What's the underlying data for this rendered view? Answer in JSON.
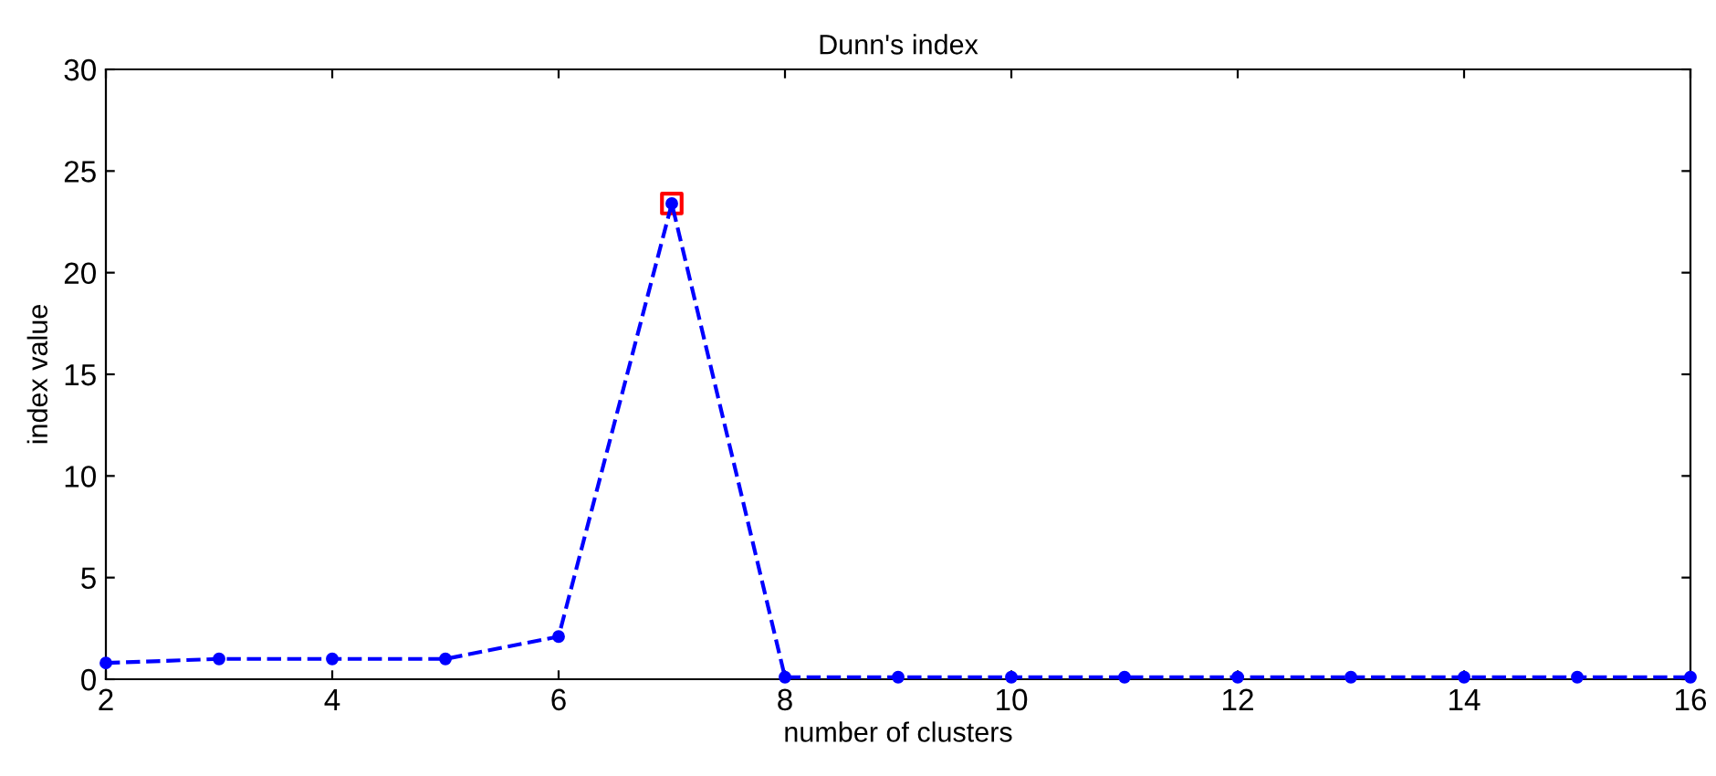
{
  "chart_data": {
    "type": "line",
    "title": "Dunn's index",
    "xlabel": "number of clusters",
    "ylabel": "index value",
    "x": [
      2,
      3,
      4,
      5,
      6,
      7,
      8,
      9,
      10,
      11,
      12,
      13,
      14,
      15,
      16
    ],
    "series": [
      {
        "color": "#0000ff",
        "values": [
          0.8,
          1.0,
          1.0,
          1.0,
          2.1,
          23.4,
          0.1,
          0.1,
          0.1,
          0.1,
          0.1,
          0.1,
          0.1,
          0.1,
          0.1
        ],
        "marker": "circle",
        "line_style": "dashed"
      },
      {
        "type": "scatter",
        "x": [
          7
        ],
        "color": "#ff0000",
        "values": [
          23.4
        ],
        "marker": "square"
      }
    ],
    "xlim": [
      2,
      16
    ],
    "xticks": [
      2,
      4,
      6,
      8,
      10,
      12,
      14,
      16
    ],
    "ylim": [
      0,
      30
    ],
    "yticks": [
      0,
      5,
      10,
      15,
      20,
      25,
      30
    ],
    "grid": false
  }
}
